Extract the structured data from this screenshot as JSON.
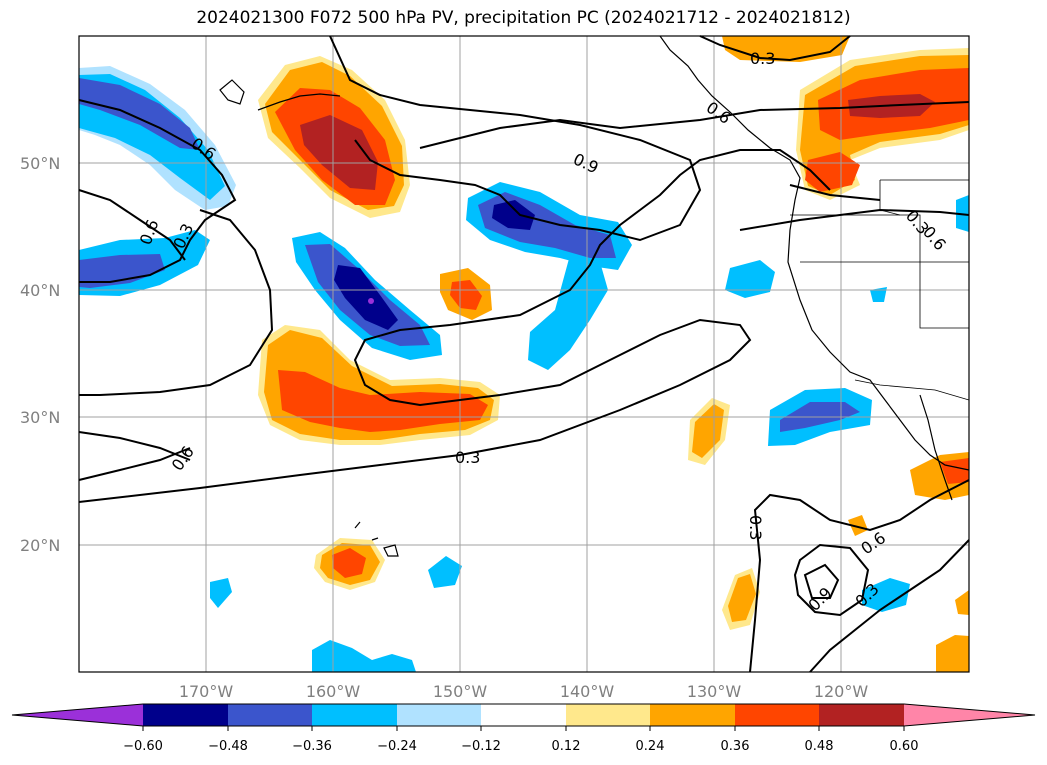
{
  "title": "2024021300 F072 500 hPa PV, precipitation PC (2024021712 - 2024021812)",
  "map": {
    "lat_labels": [
      "50°N",
      "40°N",
      "30°N",
      "20°N"
    ],
    "lon_labels": [
      "170°W",
      "160°W",
      "150°W",
      "140°W",
      "130°W",
      "120°W"
    ],
    "contour_labels": [
      "0.3",
      "0.6",
      "0.6",
      "0.3",
      "0.6",
      "0.9",
      "0.3",
      "0.6",
      "0.3",
      "0.6",
      "0.3",
      "0.9",
      "0.3",
      "0.6"
    ]
  },
  "colorbar": {
    "ticks": [
      "−0.60",
      "−0.48",
      "−0.36",
      "−0.24",
      "−0.12",
      "0.12",
      "0.24",
      "0.36",
      "0.48",
      "0.60"
    ],
    "colors": [
      "#9b30d9",
      "#00008b",
      "#3b55cc",
      "#00bfff",
      "#b0e2ff",
      "#ffffff",
      "#ffe88c",
      "#ffa500",
      "#ff4500",
      "#b22222",
      "#ff85a8"
    ]
  },
  "palette": {
    "neg_extreme": "#9b30d9",
    "neg_dark": "#00008b",
    "neg_mid": "#3b55cc",
    "neg_light": "#00bfff",
    "neg_pale": "#b0e2ff",
    "pos_pale": "#ffe88c",
    "pos_light": "#ffa500",
    "pos_mid": "#ff4500",
    "pos_dark": "#b22222",
    "pos_extreme": "#ff85a8"
  }
}
